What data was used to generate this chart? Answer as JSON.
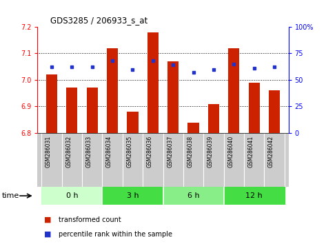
{
  "title": "GDS3285 / 206933_s_at",
  "samples": [
    "GSM286031",
    "GSM286032",
    "GSM286033",
    "GSM286034",
    "GSM286035",
    "GSM286036",
    "GSM286037",
    "GSM286038",
    "GSM286039",
    "GSM286040",
    "GSM286041",
    "GSM286042"
  ],
  "transformed_count": [
    7.02,
    6.97,
    6.97,
    7.12,
    6.88,
    7.18,
    7.07,
    6.84,
    6.91,
    7.12,
    6.99,
    6.96
  ],
  "percentile_rank": [
    62,
    62,
    62,
    68,
    60,
    68,
    64,
    57,
    60,
    65,
    61,
    62
  ],
  "groups": [
    {
      "label": "0 h",
      "start": 0,
      "end": 3,
      "color": "#ccffcc"
    },
    {
      "label": "3 h",
      "start": 3,
      "end": 6,
      "color": "#44dd44"
    },
    {
      "label": "6 h",
      "start": 6,
      "end": 9,
      "color": "#88ee88"
    },
    {
      "label": "12 h",
      "start": 9,
      "end": 12,
      "color": "#44dd44"
    }
  ],
  "ylim_left": [
    6.8,
    7.2
  ],
  "ylim_right": [
    0,
    100
  ],
  "bar_color": "#cc2200",
  "dot_color": "#2233cc",
  "bar_width": 0.55,
  "yticks_left": [
    6.8,
    6.9,
    7.0,
    7.1,
    7.2
  ],
  "yticks_right": [
    0,
    25,
    50,
    75,
    100
  ],
  "bg_xlabels": "#cccccc",
  "time_label": "time",
  "legend_bar_label": "transformed count",
  "legend_dot_label": "percentile rank within the sample"
}
